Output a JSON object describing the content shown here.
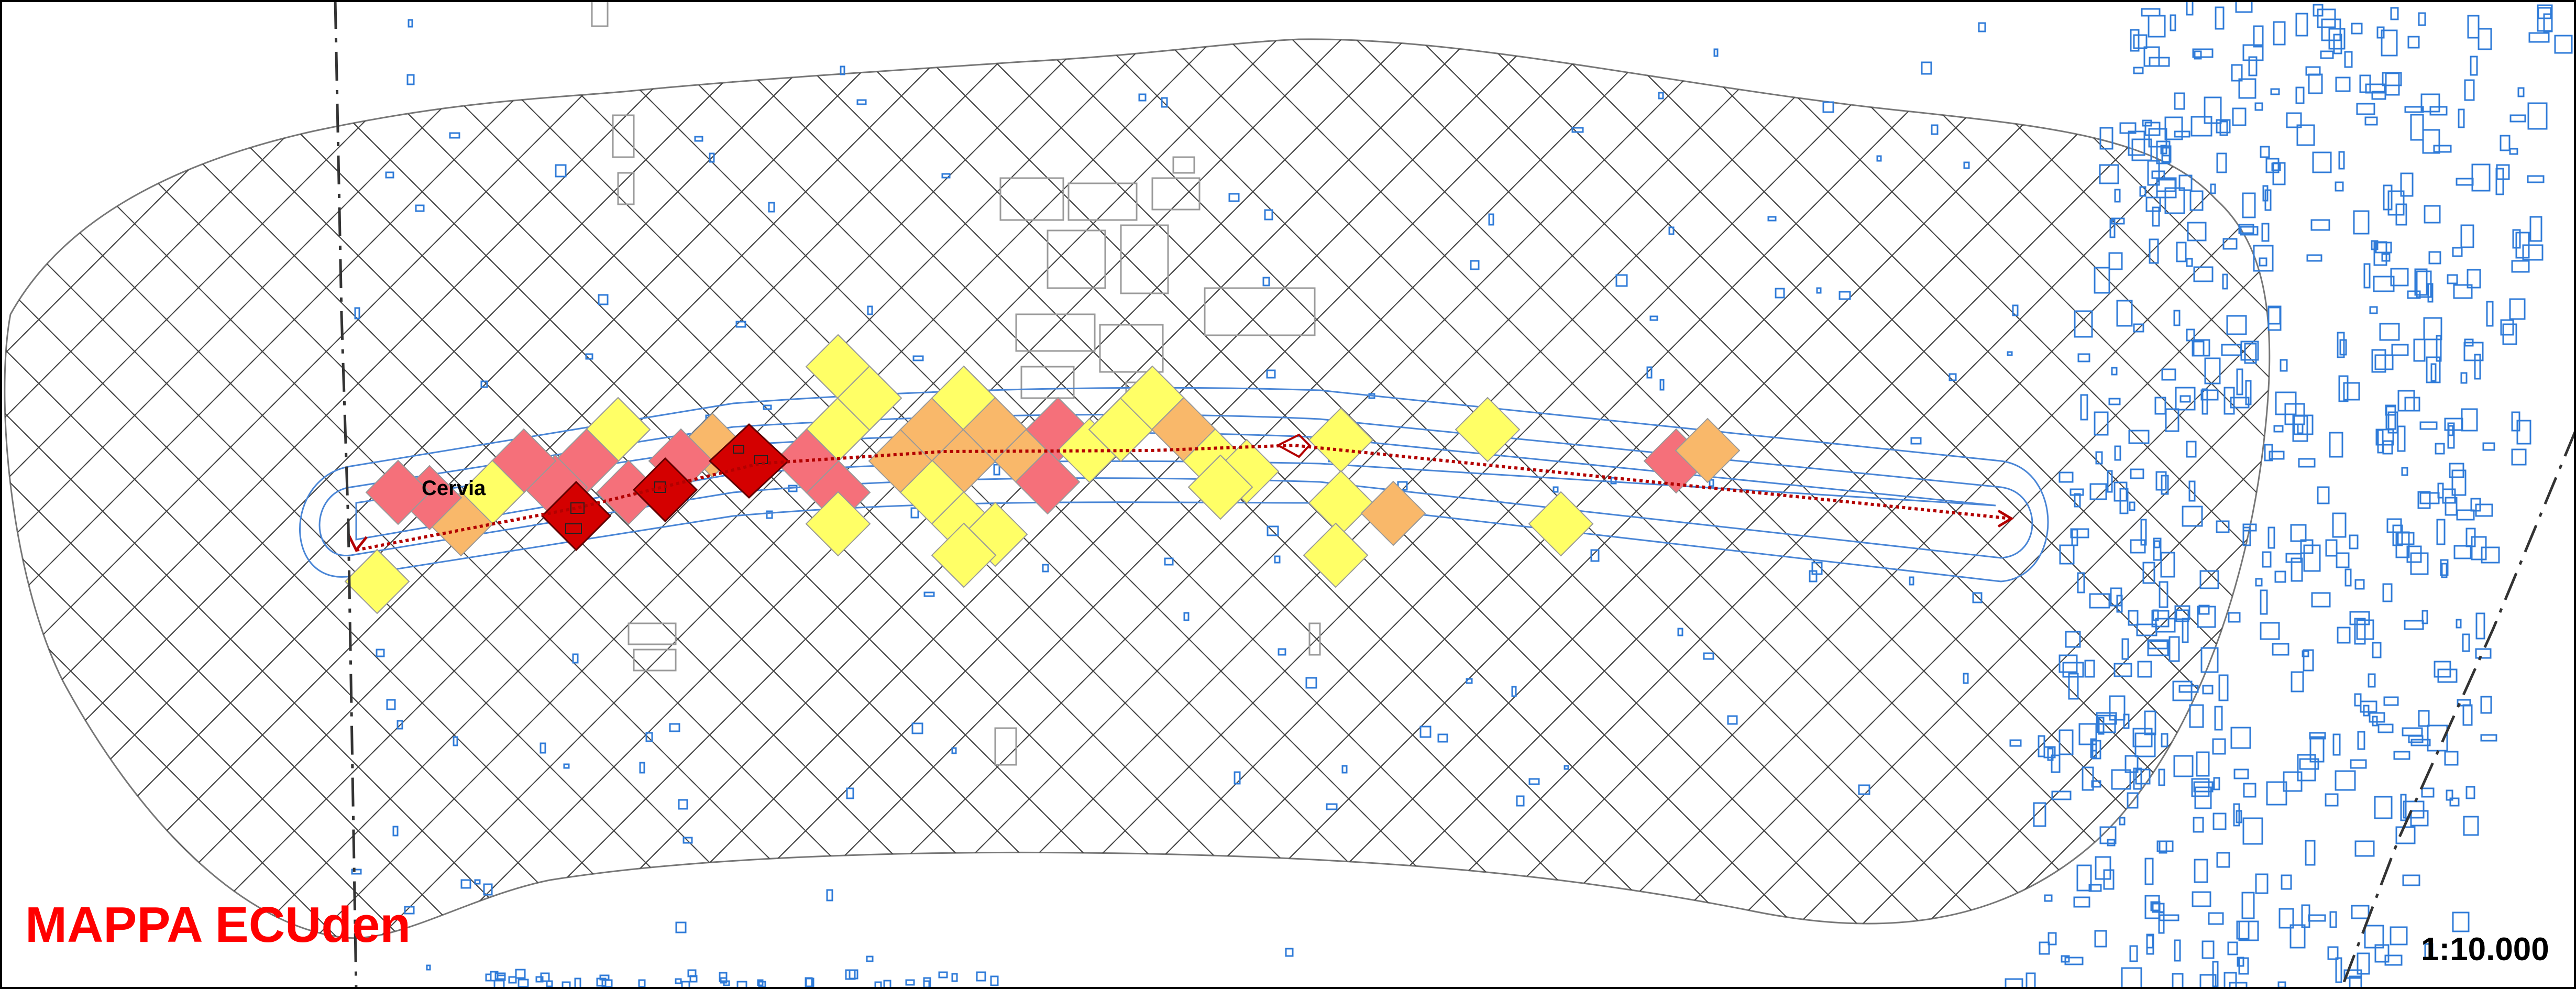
{
  "map": {
    "title": "MAPPA ECUden",
    "scale": "1:10.000",
    "place_label": "Cervia"
  },
  "legend_colors": {
    "class_1": "#ffff66",
    "class_2": "#f9b86a",
    "class_3": "#f5707a",
    "class_4": "#e00000",
    "route": "#b30000",
    "buildings": "#2f7bd8",
    "buffer": "#4a86d6",
    "grid": "#333333",
    "background_buildings": "#9a9a9a"
  }
}
